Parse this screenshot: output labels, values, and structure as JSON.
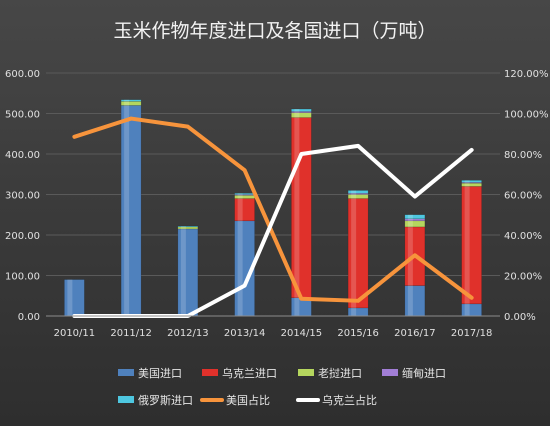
{
  "chart_data": {
    "type": "bar",
    "title": "玉米作物年度进口及各国进口（万吨）",
    "categories": [
      "2010/11",
      "2011/12",
      "2012/13",
      "2013/14",
      "2014/15",
      "2015/16",
      "2016/17",
      "2017/18"
    ],
    "left_axis": {
      "ylim": [
        0,
        600
      ],
      "ticks": [
        "0.00",
        "100.00",
        "200.00",
        "300.00",
        "400.00",
        "500.00",
        "600.00"
      ]
    },
    "right_axis": {
      "ylim": [
        0,
        1.2
      ],
      "ticks": [
        "0.00%",
        "20.00%",
        "40.00%",
        "60.00%",
        "80.00%",
        "100.00%",
        "120.00%"
      ]
    },
    "series": [
      {
        "name": "美国进口",
        "kind": "bar",
        "color": "#4f81bd",
        "values": [
          90,
          520,
          215,
          235,
          45,
          20,
          75,
          30
        ]
      },
      {
        "name": "乌克兰进口",
        "kind": "bar",
        "color": "#e0312b",
        "values": [
          0,
          0,
          0,
          55,
          445,
          270,
          145,
          290
        ]
      },
      {
        "name": "老挝进口",
        "kind": "bar",
        "color": "#b5d65e",
        "values": [
          0,
          10,
          5,
          8,
          12,
          10,
          15,
          8
        ]
      },
      {
        "name": "缅甸进口",
        "kind": "bar",
        "color": "#a27ed6",
        "values": [
          0,
          0,
          0,
          2,
          3,
          3,
          5,
          2
        ]
      },
      {
        "name": "俄罗斯进口",
        "kind": "bar",
        "color": "#4ec7e0",
        "values": [
          0,
          4,
          2,
          3,
          6,
          7,
          10,
          5
        ]
      },
      {
        "name": "美国占比",
        "kind": "line",
        "axis": "right",
        "color": "#f7943c",
        "values": [
          0.885,
          0.975,
          0.935,
          0.72,
          0.085,
          0.075,
          0.3,
          0.09
        ]
      },
      {
        "name": "乌克兰占比",
        "kind": "line",
        "axis": "right",
        "color": "#ffffff",
        "values": [
          0.0,
          0.0,
          0.0,
          0.15,
          0.8,
          0.84,
          0.59,
          0.82
        ]
      }
    ],
    "legend": "bottom"
  }
}
